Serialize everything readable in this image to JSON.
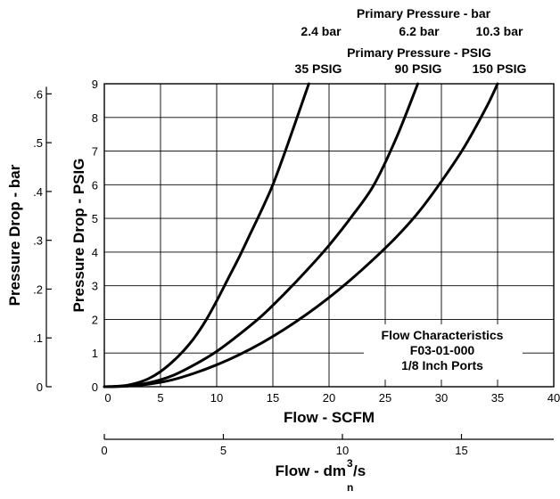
{
  "header": {
    "bar_title": "Primary Pressure - bar",
    "bar_labels": [
      "2.4 bar",
      "6.2 bar",
      "10.3 bar"
    ],
    "psig_title": "Primary Pressure - PSIG",
    "psig_labels": [
      "35 PSIG",
      "90 PSIG",
      "150 PSIG"
    ]
  },
  "annotation": {
    "line1": "Flow Characteristics",
    "line2": "F03-01-000",
    "line3": "1/8 Inch Ports"
  },
  "chart_data": {
    "type": "line",
    "xlabel": "Flow - SCFM",
    "ylabel": "Pressure Drop - PSIG",
    "xlim": [
      0,
      40
    ],
    "ylim": [
      0,
      9
    ],
    "x_ticks": [
      "0",
      "5",
      "10",
      "15",
      "20",
      "25",
      "30",
      "35",
      "40"
    ],
    "y_ticks": [
      "0",
      "1",
      "2",
      "3",
      "4",
      "5",
      "6",
      "7",
      "8",
      "9"
    ],
    "grid": true,
    "secondary_y": {
      "label": "Pressure Drop - bar",
      "ticks": [
        {
          "value": 0,
          "label": "0"
        },
        {
          "value": 0.1,
          "label": ".1"
        },
        {
          "value": 0.2,
          "label": ".2"
        },
        {
          "value": 0.3,
          "label": ".3"
        },
        {
          "value": 0.4,
          "label": ".4"
        },
        {
          "value": 0.5,
          "label": ".5"
        },
        {
          "value": 0.6,
          "label": ".6"
        }
      ],
      "psig_per_unit": 14.5
    },
    "secondary_x": {
      "label_main": "Flow - dm",
      "label_sup": "3",
      "label_tail": "/s",
      "label_sub": "n",
      "ticks": [
        {
          "value": 0,
          "label": "0"
        },
        {
          "value": 5,
          "label": "5"
        },
        {
          "value": 10,
          "label": "10"
        },
        {
          "value": 15,
          "label": "15"
        }
      ],
      "scfm_per_unit": 2.119
    },
    "series": [
      {
        "name": "35 PSIG",
        "x": [
          0,
          1,
          2,
          3,
          4,
          5,
          6,
          7,
          8,
          9,
          10,
          11,
          12,
          13,
          14,
          15,
          16,
          17,
          18.2
        ],
        "y": [
          0,
          0.01,
          0.04,
          0.12,
          0.25,
          0.45,
          0.72,
          1.05,
          1.45,
          1.95,
          2.55,
          3.2,
          3.85,
          4.55,
          5.25,
          6.0,
          6.9,
          7.85,
          9.0
        ]
      },
      {
        "name": "90 PSIG",
        "x": [
          0,
          2,
          4,
          6,
          8,
          10,
          12,
          14,
          16,
          18,
          20,
          22,
          24,
          26,
          27.9
        ],
        "y": [
          0,
          0.02,
          0.12,
          0.32,
          0.65,
          1.05,
          1.55,
          2.1,
          2.75,
          3.45,
          4.2,
          5.05,
          6.0,
          7.4,
          9.0
        ]
      },
      {
        "name": "150 PSIG",
        "x": [
          0,
          2,
          4,
          6,
          8,
          10,
          12,
          14,
          16,
          18,
          20,
          22,
          24,
          26,
          28,
          30,
          32,
          34,
          35
        ],
        "y": [
          0,
          0.02,
          0.08,
          0.2,
          0.4,
          0.65,
          0.95,
          1.3,
          1.7,
          2.15,
          2.65,
          3.2,
          3.8,
          4.45,
          5.2,
          6.1,
          7.1,
          8.3,
          9.0
        ]
      }
    ]
  }
}
